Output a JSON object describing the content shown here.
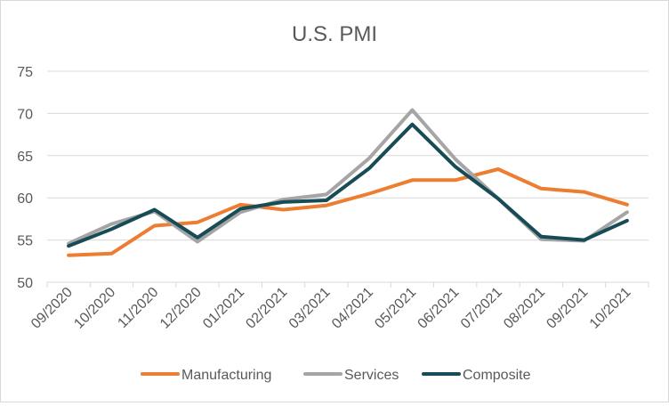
{
  "chart_data": {
    "type": "line",
    "title": "U.S. PMI",
    "xlabel": "",
    "ylabel": "",
    "ylim": [
      50,
      75
    ],
    "yticks": [
      50,
      55,
      60,
      65,
      70,
      75
    ],
    "grid": true,
    "legend_position": "bottom",
    "categories": [
      "09/2020",
      "10/2020",
      "11/2020",
      "12/2020",
      "01/2021",
      "02/2021",
      "03/2021",
      "04/2021",
      "05/2021",
      "06/2021",
      "07/2021",
      "08/2021",
      "09/2021",
      "10/2021"
    ],
    "series": [
      {
        "name": "Manufacturing",
        "color": "#ED7D31",
        "values": [
          53.2,
          53.4,
          56.7,
          57.1,
          59.2,
          58.6,
          59.1,
          60.5,
          62.1,
          62.1,
          63.4,
          61.1,
          60.7,
          59.2
        ]
      },
      {
        "name": "Services",
        "color": "#A5A5A5",
        "values": [
          54.6,
          56.9,
          58.4,
          54.8,
          58.3,
          59.8,
          60.4,
          64.7,
          70.4,
          64.6,
          59.9,
          55.1,
          54.9,
          58.3
        ]
      },
      {
        "name": "Composite",
        "color": "#174C57",
        "values": [
          54.3,
          56.3,
          58.6,
          55.3,
          58.7,
          59.5,
          59.7,
          63.5,
          68.7,
          63.7,
          59.9,
          55.4,
          55.0,
          57.3
        ]
      }
    ]
  }
}
